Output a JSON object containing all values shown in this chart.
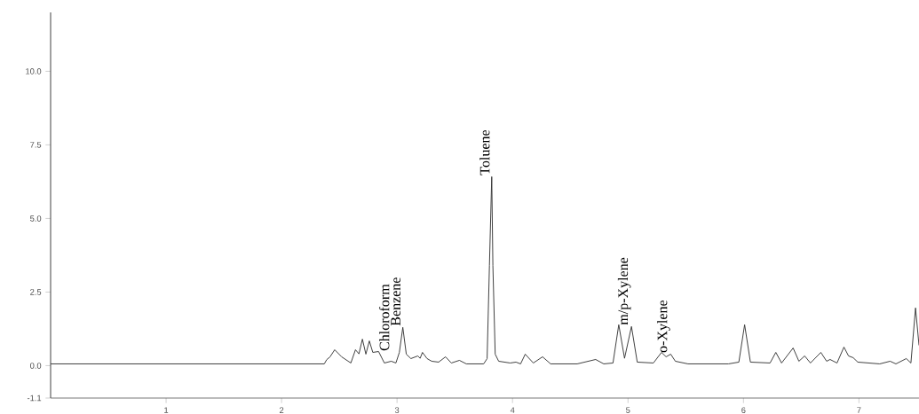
{
  "chart_data": {
    "type": "line",
    "xlim": [
      0,
      7.52
    ],
    "ylim": [
      -1.1,
      12
    ],
    "xticks": [
      1,
      2,
      3,
      4,
      5,
      6,
      7
    ],
    "yticks": [
      {
        "value": -1.1,
        "label": "-1.1"
      },
      {
        "value": 0,
        "label": "0.0"
      },
      {
        "value": 2.5,
        "label": "2.5"
      },
      {
        "value": 5,
        "label": "5.0"
      },
      {
        "value": 7.5,
        "label": "7.5"
      },
      {
        "value": 10,
        "label": "10.0"
      }
    ],
    "series": [
      {
        "color": "#333333",
        "x": [
          0,
          2.37,
          2.39,
          2.42,
          2.46,
          2.52,
          2.6,
          2.64,
          2.67,
          2.7,
          2.73,
          2.76,
          2.79,
          2.84,
          2.89,
          2.95,
          2.99,
          3.02,
          3.05,
          3.08,
          3.12,
          3.18,
          3.2,
          3.22,
          3.26,
          3.3,
          3.36,
          3.42,
          3.47,
          3.54,
          3.6,
          3.75,
          3.78,
          3.8,
          3.82,
          3.83,
          3.85,
          3.88,
          3.98,
          4.03,
          4.07,
          4.11,
          4.18,
          4.26,
          4.33,
          4.56,
          4.72,
          4.79,
          4.87,
          4.92,
          4.97,
          5.03,
          5.08,
          5.22,
          5.29,
          5.33,
          5.37,
          5.41,
          5.52,
          5.87,
          5.96,
          6.01,
          6.06,
          6.23,
          6.28,
          6.33,
          6.43,
          6.48,
          6.53,
          6.58,
          6.67,
          6.72,
          6.75,
          6.81,
          6.87,
          6.91,
          6.95,
          6.99,
          7.18,
          7.27,
          7.32,
          7.41,
          7.45,
          7.49,
          7.52
        ],
        "values": [
          0.06,
          0.06,
          0.2,
          0.3,
          0.54,
          0.3,
          0.09,
          0.54,
          0.4,
          0.9,
          0.39,
          0.84,
          0.45,
          0.48,
          0.09,
          0.15,
          0.09,
          0.45,
          1.3,
          0.39,
          0.24,
          0.33,
          0.25,
          0.45,
          0.24,
          0.15,
          0.12,
          0.3,
          0.09,
          0.18,
          0.06,
          0.06,
          0.24,
          3.4,
          6.42,
          3.4,
          0.39,
          0.15,
          0.09,
          0.12,
          0.06,
          0.39,
          0.09,
          0.3,
          0.06,
          0.06,
          0.21,
          0.06,
          0.09,
          1.39,
          0.25,
          1.33,
          0.12,
          0.09,
          0.45,
          0.3,
          0.39,
          0.15,
          0.06,
          0.06,
          0.12,
          1.39,
          0.12,
          0.09,
          0.45,
          0.09,
          0.6,
          0.15,
          0.33,
          0.09,
          0.45,
          0.15,
          0.21,
          0.09,
          0.63,
          0.33,
          0.27,
          0.12,
          0.06,
          0.15,
          0.06,
          0.24,
          0.09,
          1.96,
          0.69
        ]
      }
    ],
    "annotations": [
      {
        "text": "Chloroform",
        "x": 2.95,
        "y": 0.15
      },
      {
        "text": "Benzene",
        "x": 3.05,
        "y": 1.3
      },
      {
        "text": "Toluene",
        "x": 3.82,
        "y": 6.42
      },
      {
        "text": "m/p-Xylene",
        "x": 5.03,
        "y": 1.33
      },
      {
        "text": "o-Xylene",
        "x": 5.37,
        "y": 0.39
      }
    ]
  }
}
